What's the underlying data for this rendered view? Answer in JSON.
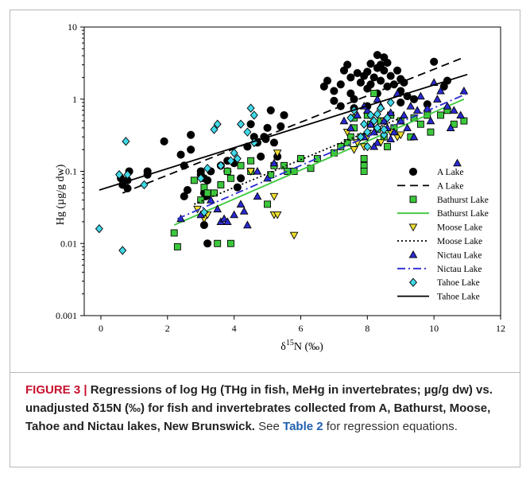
{
  "caption": {
    "label": "FIGURE 3 | ",
    "bold": "Regressions of log Hg (THg in fish, MeHg in invertebrates; µg/g dw) vs. unadjusted δ15N (‰) for fish and invertebrates collected from A, Bathurst, Moose, Tahoe and Nictau lakes, New Brunswick.",
    "text1": " See ",
    "table_ref": "Table 2",
    "text2": " for regression equations."
  },
  "chart_data": {
    "type": "scatter",
    "title": "",
    "xlabel_prefix": "δ",
    "xlabel_sup": "15",
    "xlabel_suffix": "N (‰)",
    "ylabel": "Hg (µg/g dw)",
    "xlim": [
      -0.5,
      12
    ],
    "ylim": [
      0.001,
      10
    ],
    "yscale": "log",
    "xticks": [
      0,
      2,
      4,
      6,
      8,
      10,
      12
    ],
    "yticks": [
      {
        "value": 0.001,
        "label": "0.001"
      },
      {
        "value": 0.01,
        "label": "0.01"
      },
      {
        "value": 0.1,
        "label": "0.1"
      },
      {
        "value": 1,
        "label": "1"
      },
      {
        "value": 10,
        "label": "10"
      }
    ],
    "legend_position": "bottom-right",
    "series": [
      {
        "name": "A Lake",
        "marker": "circle",
        "color": "#000000",
        "points": [
          [
            0.65,
            0.065
          ],
          [
            0.6,
            0.08
          ],
          [
            0.8,
            0.075
          ],
          [
            0.85,
            0.1
          ],
          [
            0.8,
            0.058
          ],
          [
            1.4,
            0.09
          ],
          [
            1.4,
            0.1
          ],
          [
            1.9,
            0.26
          ],
          [
            2.4,
            0.17
          ],
          [
            2.5,
            0.12
          ],
          [
            2.6,
            0.055
          ],
          [
            2.7,
            0.32
          ],
          [
            2.7,
            0.2
          ],
          [
            2.5,
            0.045
          ],
          [
            3.0,
            0.1
          ],
          [
            3.0,
            0.09
          ],
          [
            3.1,
            0.08
          ],
          [
            3.15,
            0.045
          ],
          [
            3.2,
            0.075
          ],
          [
            3.3,
            0.1
          ],
          [
            3.1,
            0.05
          ],
          [
            3.1,
            0.018
          ],
          [
            3.2,
            0.01
          ],
          [
            3.6,
            0.12
          ],
          [
            3.8,
            0.1
          ],
          [
            3.8,
            0.14
          ],
          [
            4.0,
            0.13
          ],
          [
            4.1,
            0.06
          ],
          [
            4.2,
            0.08
          ],
          [
            4.4,
            0.22
          ],
          [
            4.5,
            0.45
          ],
          [
            4.6,
            0.3
          ],
          [
            4.7,
            0.25
          ],
          [
            4.8,
            0.16
          ],
          [
            4.9,
            0.3
          ],
          [
            4.95,
            0.28
          ],
          [
            5.0,
            0.4
          ],
          [
            5.1,
            0.7
          ],
          [
            5.2,
            0.25
          ],
          [
            5.3,
            0.16
          ],
          [
            5.4,
            0.42
          ],
          [
            5.5,
            0.6
          ],
          [
            6.7,
            1.5
          ],
          [
            6.8,
            1.8
          ],
          [
            7.0,
            1.3
          ],
          [
            7.2,
            1.6
          ],
          [
            7.3,
            2.5
          ],
          [
            7.4,
            3.0
          ],
          [
            7.5,
            1.2
          ],
          [
            7.5,
            2.0
          ],
          [
            7.6,
            1.0
          ],
          [
            7.7,
            2.3
          ],
          [
            7.8,
            1.7
          ],
          [
            7.9,
            2.1
          ],
          [
            8.0,
            2.4
          ],
          [
            8.0,
            1.4
          ],
          [
            8.1,
            3.1
          ],
          [
            8.1,
            1.6
          ],
          [
            8.2,
            2.0
          ],
          [
            8.3,
            4.1
          ],
          [
            8.3,
            2.7
          ],
          [
            8.3,
            1.2
          ],
          [
            8.4,
            3.0
          ],
          [
            8.4,
            1.8
          ],
          [
            8.5,
            3.8
          ],
          [
            8.5,
            2.5
          ],
          [
            8.6,
            1.5
          ],
          [
            8.6,
            3.2
          ],
          [
            8.7,
            2.1
          ],
          [
            8.8,
            1.6
          ],
          [
            8.9,
            2.5
          ],
          [
            9.0,
            1.9
          ],
          [
            9.0,
            1.3
          ],
          [
            9.1,
            1.7
          ],
          [
            9.2,
            1.1
          ],
          [
            7.2,
            0.8
          ],
          [
            7.6,
            0.75
          ],
          [
            8.0,
            0.8
          ],
          [
            9.0,
            0.9
          ],
          [
            9.4,
            1.0
          ],
          [
            9.8,
            0.85
          ],
          [
            10.0,
            3.3
          ],
          [
            10.3,
            1.5
          ],
          [
            10.4,
            1.8
          ],
          [
            7.0,
            0.95
          ]
        ]
      },
      {
        "name": "A Lake",
        "line": "dashed",
        "color": "#000000",
        "points": [
          [
            0.65,
            0.05
          ],
          [
            10.9,
            3.8
          ]
        ]
      },
      {
        "name": "Bathurst Lake",
        "marker": "square",
        "color": "#3cc83c",
        "points": [
          [
            2.2,
            0.014
          ],
          [
            2.3,
            0.009
          ],
          [
            2.8,
            0.075
          ],
          [
            3.0,
            0.04
          ],
          [
            3.1,
            0.06
          ],
          [
            3.2,
            0.05
          ],
          [
            3.4,
            0.05
          ],
          [
            3.5,
            0.01
          ],
          [
            3.6,
            0.065
          ],
          [
            3.8,
            0.1
          ],
          [
            3.9,
            0.08
          ],
          [
            3.9,
            0.01
          ],
          [
            4.2,
            0.12
          ],
          [
            4.5,
            0.14
          ],
          [
            4.5,
            0.1
          ],
          [
            5.0,
            0.035
          ],
          [
            5.1,
            0.09
          ],
          [
            5.2,
            0.12
          ],
          [
            5.5,
            0.12
          ],
          [
            5.6,
            0.1
          ],
          [
            5.8,
            0.1
          ],
          [
            6.0,
            0.15
          ],
          [
            6.3,
            0.11
          ],
          [
            6.5,
            0.15
          ],
          [
            7.0,
            0.18
          ],
          [
            7.2,
            0.22
          ],
          [
            7.4,
            0.25
          ],
          [
            7.5,
            0.3
          ],
          [
            7.6,
            0.4
          ],
          [
            7.6,
            0.55
          ],
          [
            7.8,
            0.3
          ],
          [
            7.9,
            0.15
          ],
          [
            7.9,
            0.12
          ],
          [
            7.9,
            0.1
          ],
          [
            8.0,
            0.6
          ],
          [
            8.1,
            0.45
          ],
          [
            8.2,
            1.2
          ],
          [
            8.3,
            0.38
          ],
          [
            8.4,
            0.5
          ],
          [
            8.5,
            0.3
          ],
          [
            8.6,
            0.22
          ],
          [
            8.7,
            0.6
          ],
          [
            8.8,
            0.4
          ],
          [
            9.0,
            0.5
          ],
          [
            9.3,
            0.3
          ],
          [
            9.4,
            0.55
          ],
          [
            9.6,
            0.45
          ],
          [
            9.8,
            0.6
          ],
          [
            10.2,
            0.6
          ],
          [
            10.4,
            0.7
          ],
          [
            10.6,
            0.45
          ],
          [
            10.9,
            0.5
          ],
          [
            9.9,
            0.35
          ]
        ]
      },
      {
        "name": "Bathurst Lake",
        "line": "solid",
        "color": "#3cc83c",
        "points": [
          [
            2.2,
            0.018
          ],
          [
            10.9,
            1.0
          ]
        ]
      },
      {
        "name": "Moose Lake",
        "marker": "triangle-down",
        "color": "#f0e030",
        "points": [
          [
            2.9,
            0.03
          ],
          [
            3.1,
            0.022
          ],
          [
            3.2,
            0.025
          ],
          [
            4.5,
            0.1
          ],
          [
            5.2,
            0.045
          ],
          [
            5.2,
            0.025
          ],
          [
            5.3,
            0.025
          ],
          [
            5.3,
            0.18
          ],
          [
            5.8,
            0.013
          ],
          [
            7.4,
            0.35
          ],
          [
            7.6,
            0.2
          ],
          [
            7.7,
            0.25
          ],
          [
            7.9,
            0.22
          ],
          [
            8.0,
            0.3
          ],
          [
            8.4,
            0.25
          ],
          [
            8.5,
            0.5
          ],
          [
            8.7,
            0.35
          ],
          [
            8.9,
            0.3
          ],
          [
            9.0,
            0.32
          ]
        ]
      },
      {
        "name": "Moose Lake",
        "line": "dotted",
        "color": "#000000",
        "points": [
          [
            2.8,
            0.035
          ],
          [
            9.0,
            0.55
          ]
        ]
      },
      {
        "name": "Nictau Lake",
        "marker": "triangle-up",
        "color": "#2a2ad0",
        "points": [
          [
            2.4,
            0.022
          ],
          [
            3.0,
            0.025
          ],
          [
            3.3,
            0.04
          ],
          [
            3.5,
            0.03
          ],
          [
            3.6,
            0.02
          ],
          [
            3.7,
            0.022
          ],
          [
            3.8,
            0.02
          ],
          [
            4.0,
            0.025
          ],
          [
            4.2,
            0.035
          ],
          [
            4.3,
            0.028
          ],
          [
            4.4,
            0.018
          ],
          [
            4.7,
            0.045
          ],
          [
            4.7,
            0.1
          ],
          [
            5.0,
            0.08
          ],
          [
            5.2,
            0.13
          ],
          [
            7.3,
            0.5
          ],
          [
            7.5,
            0.4
          ],
          [
            7.7,
            0.6
          ],
          [
            7.9,
            0.3
          ],
          [
            8.0,
            0.7
          ],
          [
            8.1,
            0.45
          ],
          [
            8.2,
            0.35
          ],
          [
            8.3,
            0.25
          ],
          [
            8.4,
            0.8
          ],
          [
            8.5,
            0.5
          ],
          [
            8.6,
            0.4
          ],
          [
            8.7,
            0.65
          ],
          [
            8.8,
            0.35
          ],
          [
            8.9,
            1.2
          ],
          [
            9.0,
            0.5
          ],
          [
            9.1,
            0.6
          ],
          [
            9.2,
            0.4
          ],
          [
            9.3,
            0.8
          ],
          [
            9.5,
            0.7
          ],
          [
            9.6,
            1.1
          ],
          [
            9.8,
            0.75
          ],
          [
            9.9,
            0.5
          ],
          [
            10.0,
            1.7
          ],
          [
            10.1,
            1.0
          ],
          [
            10.2,
            1.3
          ],
          [
            10.4,
            0.8
          ],
          [
            10.5,
            0.4
          ],
          [
            10.6,
            0.7
          ],
          [
            10.7,
            0.13
          ],
          [
            10.8,
            0.6
          ],
          [
            10.9,
            1.3
          ],
          [
            8.2,
            0.22
          ],
          [
            8.7,
            0.28
          ],
          [
            9.4,
            0.3
          ],
          [
            8.3,
            1.0
          ],
          [
            7.9,
            0.8
          ]
        ]
      },
      {
        "name": "Nictau Lake",
        "line": "dashdot",
        "color": "#2a2ad0",
        "points": [
          [
            2.3,
            0.022
          ],
          [
            11.0,
            1.2
          ]
        ]
      },
      {
        "name": "Tahoe Lake",
        "marker": "diamond",
        "color": "#40d8e8",
        "points": [
          [
            -0.05,
            0.016
          ],
          [
            0.65,
            0.008
          ],
          [
            0.55,
            0.09
          ],
          [
            0.75,
            0.26
          ],
          [
            0.8,
            0.09
          ],
          [
            1.3,
            0.065
          ],
          [
            3.0,
            0.08
          ],
          [
            3.1,
            0.027
          ],
          [
            3.2,
            0.11
          ],
          [
            3.4,
            0.38
          ],
          [
            3.5,
            0.45
          ],
          [
            3.6,
            0.12
          ],
          [
            3.9,
            0.14
          ],
          [
            4.0,
            0.18
          ],
          [
            4.1,
            0.15
          ],
          [
            4.2,
            0.45
          ],
          [
            4.4,
            0.35
          ],
          [
            4.5,
            0.75
          ],
          [
            4.6,
            0.6
          ],
          [
            4.6,
            0.25
          ],
          [
            7.5,
            0.55
          ],
          [
            7.6,
            0.7
          ],
          [
            7.8,
            0.3
          ],
          [
            7.9,
            0.45
          ],
          [
            8.0,
            0.35
          ],
          [
            8.1,
            0.6
          ],
          [
            8.2,
            0.5
          ],
          [
            8.3,
            0.4
          ],
          [
            8.4,
            0.75
          ],
          [
            8.5,
            0.32
          ],
          [
            8.6,
            0.55
          ],
          [
            8.7,
            0.9
          ],
          [
            8.0,
            0.22
          ],
          [
            8.5,
            0.38
          ],
          [
            8.3,
            0.62
          ]
        ]
      },
      {
        "name": "Tahoe Lake",
        "line": "solid",
        "color": "#000000",
        "points": [
          [
            -0.05,
            0.055
          ],
          [
            11.0,
            2.2
          ]
        ]
      }
    ]
  }
}
